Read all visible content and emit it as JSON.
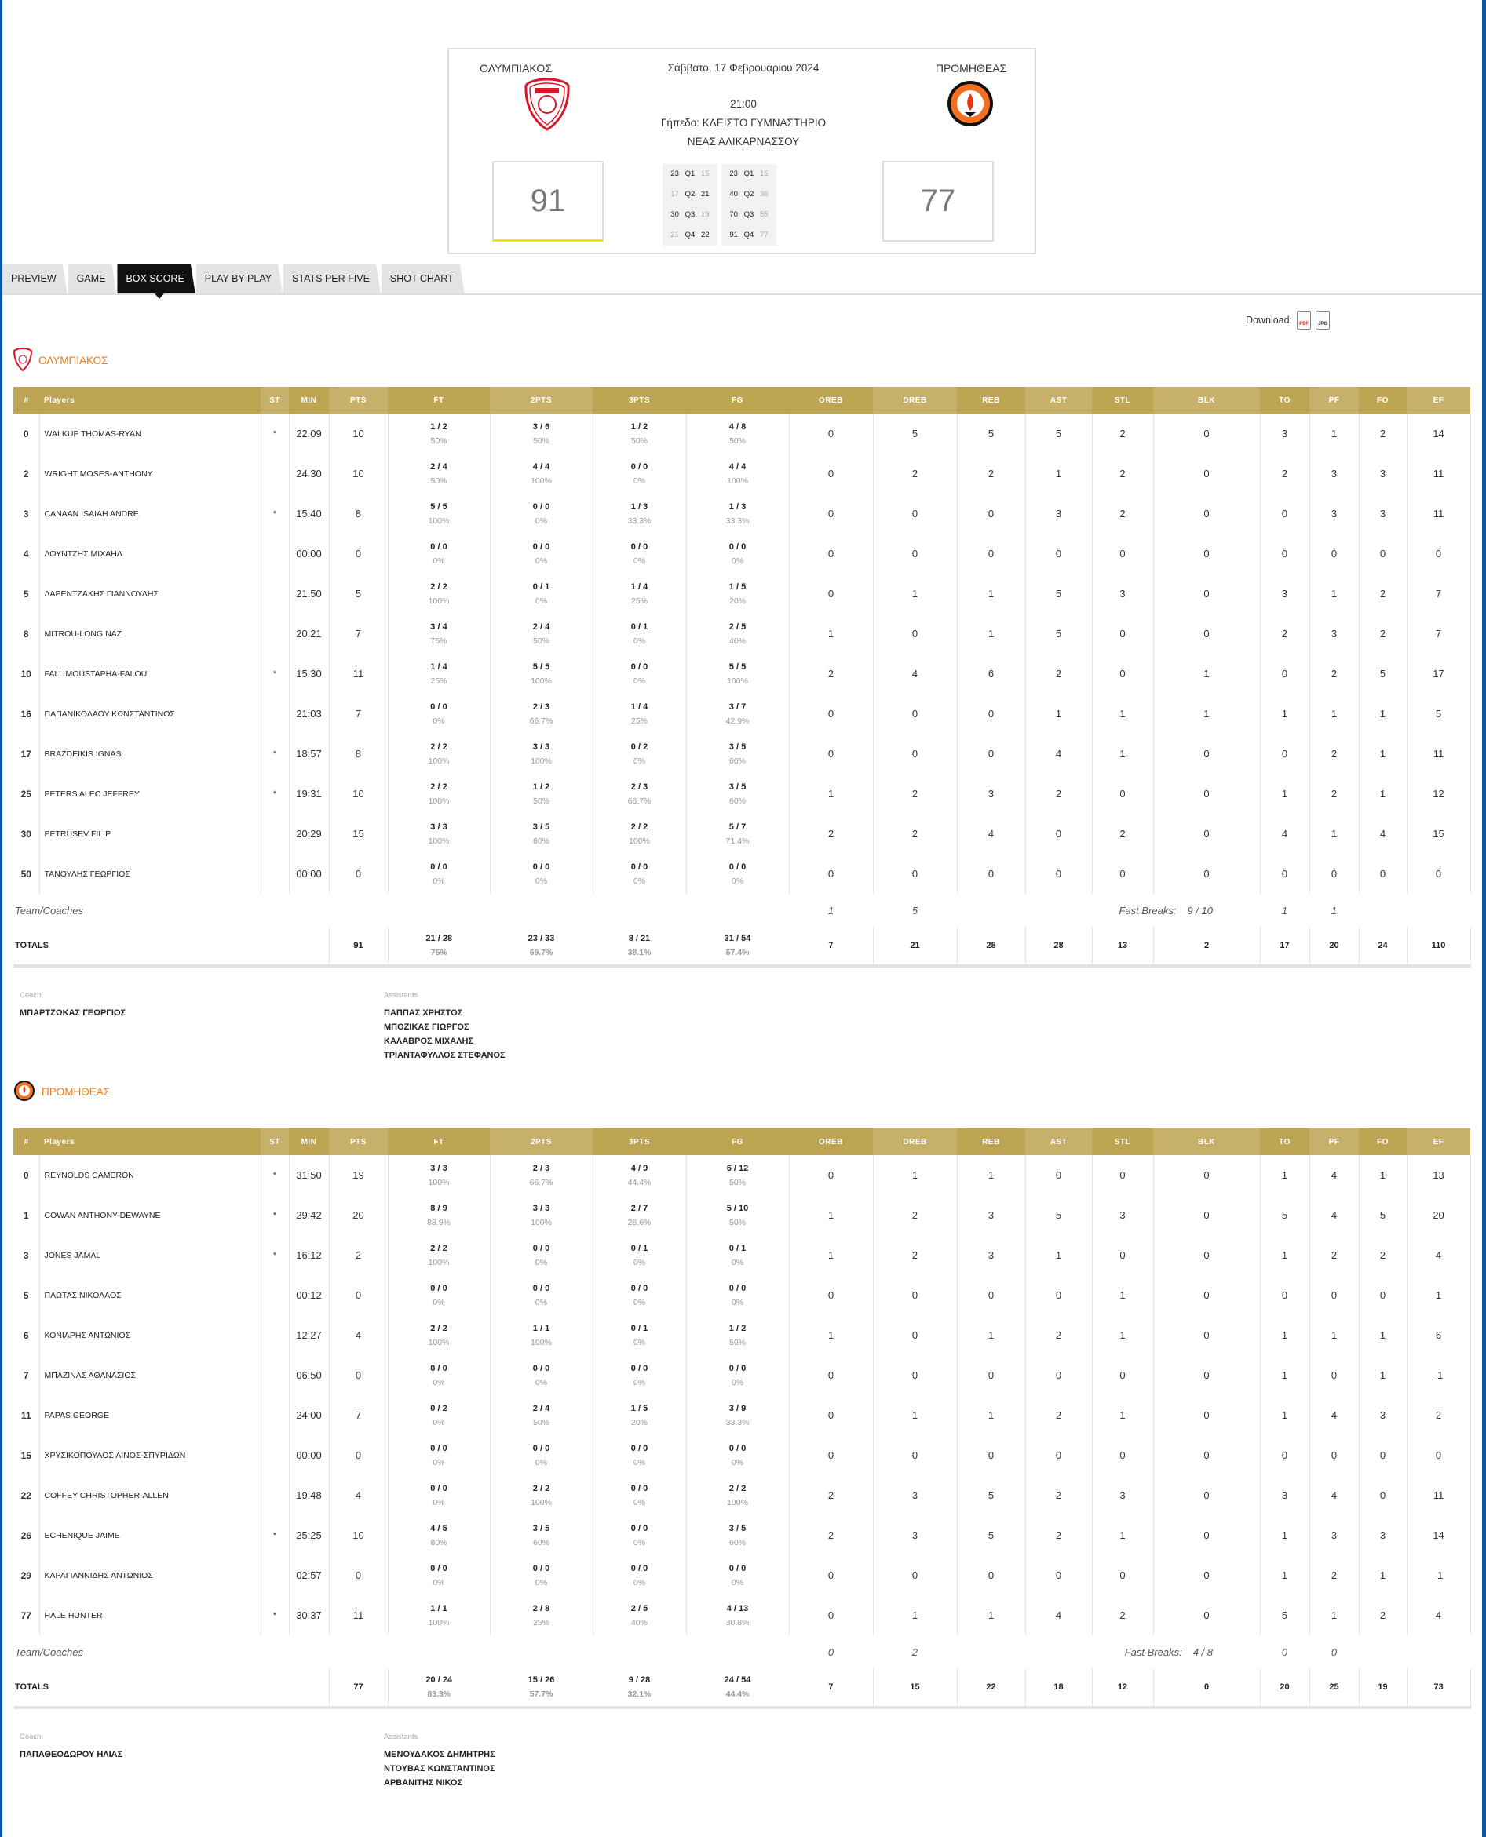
{
  "header": {
    "home_name": "ΟΛΥΜΠΙΑΚΟΣ",
    "away_name": "ΠΡΟΜΗΘΕΑΣ",
    "date": "Σάββατο, 17 Φεβρουαρίου 2024",
    "time": "21:00",
    "venue_line1": "Γήπεδο: ΚΛΕΙΣΤΟ ΓΥΜΝΑΣΤΗΡΙΟ",
    "venue_line2": "ΝΕΑΣ ΑΛΙΚΑΡΝΑΣΣΟΥ",
    "home_score": "91",
    "away_score": "77",
    "home_accent": "#f0e800",
    "quarters": [
      [
        "23",
        "Q1",
        "15"
      ],
      [
        "17",
        "Q2",
        "21"
      ],
      [
        "30",
        "Q3",
        "19"
      ],
      [
        "21",
        "Q4",
        "22"
      ]
    ],
    "cumulative": [
      [
        "23",
        "Q1",
        "15"
      ],
      [
        "40",
        "Q2",
        "36"
      ],
      [
        "70",
        "Q3",
        "55"
      ],
      [
        "91",
        "Q4",
        "77"
      ]
    ]
  },
  "tabs": [
    {
      "label": "PREVIEW"
    },
    {
      "label": "GAME"
    },
    {
      "label": "BOX SCORE",
      "active": true
    },
    {
      "label": "PLAY BY PLAY"
    },
    {
      "label": "STATS PER FIVE"
    },
    {
      "label": "SHOT CHART"
    }
  ],
  "download": {
    "label": "Download:",
    "pdf_icon": "PDF",
    "jpeg_icon": "JPEG"
  },
  "columns": [
    "#",
    "Players",
    "ST",
    "MIN",
    "PTS",
    "FT",
    "2PTS",
    "3PTS",
    "FG",
    "OREB",
    "DREB",
    "REB",
    "AST",
    "STL",
    "BLK",
    "TO",
    "PF",
    "FO",
    "EF"
  ],
  "colors": {
    "header_dark": "#bda554",
    "header_light": "#c6b06a",
    "team_title": "#f07a13",
    "active_tab": "#111111"
  },
  "teams": [
    {
      "name": "ΟΛΥΜΠΙΑΚΟΣ",
      "players": [
        [
          "0",
          "WALKUP THOMAS-RYAN",
          "*",
          "22:09",
          "10",
          "1 / 2",
          "50%",
          "3 / 6",
          "50%",
          "1 / 2",
          "50%",
          "4 / 8",
          "50%",
          "0",
          "5",
          "5",
          "5",
          "2",
          "0",
          "3",
          "1",
          "2",
          "14"
        ],
        [
          "2",
          "WRIGHT MOSES-ANTHONY",
          "",
          "24:30",
          "10",
          "2 / 4",
          "50%",
          "4 / 4",
          "100%",
          "0 / 0",
          "0%",
          "4 / 4",
          "100%",
          "0",
          "2",
          "2",
          "1",
          "2",
          "0",
          "2",
          "3",
          "3",
          "11"
        ],
        [
          "3",
          "CANAAN ISAIAH ANDRE",
          "*",
          "15:40",
          "8",
          "5 / 5",
          "100%",
          "0 / 0",
          "0%",
          "1 / 3",
          "33.3%",
          "1 / 3",
          "33.3%",
          "0",
          "0",
          "0",
          "3",
          "2",
          "0",
          "0",
          "3",
          "3",
          "11"
        ],
        [
          "4",
          "ΛΟΥΝΤΖΗΣ ΜΙΧΑΗΛ",
          "",
          "00:00",
          "0",
          "0 / 0",
          "0%",
          "0 / 0",
          "0%",
          "0 / 0",
          "0%",
          "0 / 0",
          "0%",
          "0",
          "0",
          "0",
          "0",
          "0",
          "0",
          "0",
          "0",
          "0",
          "0"
        ],
        [
          "5",
          "ΛΑΡΕΝΤΖΑΚΗΣ ΓΙΑΝΝΟΥΛΗΣ",
          "",
          "21:50",
          "5",
          "2 / 2",
          "100%",
          "0 / 1",
          "0%",
          "1 / 4",
          "25%",
          "1 / 5",
          "20%",
          "0",
          "1",
          "1",
          "5",
          "3",
          "0",
          "3",
          "1",
          "2",
          "7"
        ],
        [
          "8",
          "MITROU-LONG NAZ",
          "",
          "20:21",
          "7",
          "3 / 4",
          "75%",
          "2 / 4",
          "50%",
          "0 / 1",
          "0%",
          "2 / 5",
          "40%",
          "1",
          "0",
          "1",
          "5",
          "0",
          "0",
          "2",
          "3",
          "2",
          "7"
        ],
        [
          "10",
          "FALL MOUSTAPHA-FALOU",
          "*",
          "15:30",
          "11",
          "1 / 4",
          "25%",
          "5 / 5",
          "100%",
          "0 / 0",
          "0%",
          "5 / 5",
          "100%",
          "2",
          "4",
          "6",
          "2",
          "0",
          "1",
          "0",
          "2",
          "5",
          "17"
        ],
        [
          "16",
          "ΠΑΠΑΝΙΚΟΛΑΟΥ ΚΩΝΣΤΑΝΤΙΝΟΣ",
          "",
          "21:03",
          "7",
          "0 / 0",
          "0%",
          "2 / 3",
          "66.7%",
          "1 / 4",
          "25%",
          "3 / 7",
          "42.9%",
          "0",
          "0",
          "0",
          "1",
          "1",
          "1",
          "1",
          "1",
          "1",
          "5"
        ],
        [
          "17",
          "BRAZDEIKIS IGNAS",
          "*",
          "18:57",
          "8",
          "2 / 2",
          "100%",
          "3 / 3",
          "100%",
          "0 / 2",
          "0%",
          "3 / 5",
          "60%",
          "0",
          "0",
          "0",
          "4",
          "1",
          "0",
          "0",
          "2",
          "1",
          "11"
        ],
        [
          "25",
          "PETERS ALEC JEFFREY",
          "*",
          "19:31",
          "10",
          "2 / 2",
          "100%",
          "1 / 2",
          "50%",
          "2 / 3",
          "66.7%",
          "3 / 5",
          "60%",
          "1",
          "2",
          "3",
          "2",
          "0",
          "0",
          "1",
          "2",
          "1",
          "12"
        ],
        [
          "30",
          "PETRUSEV FILIP",
          "",
          "20:29",
          "15",
          "3 / 3",
          "100%",
          "3 / 5",
          "60%",
          "2 / 2",
          "100%",
          "5 / 7",
          "71.4%",
          "2",
          "2",
          "4",
          "0",
          "2",
          "0",
          "4",
          "1",
          "4",
          "15"
        ],
        [
          "50",
          "ΤΑΝΟΥΛΗΣ ΓΕΩΡΓΙΟΣ",
          "",
          "00:00",
          "0",
          "0 / 0",
          "0%",
          "0 / 0",
          "0%",
          "0 / 0",
          "0%",
          "0 / 0",
          "0%",
          "0",
          "0",
          "0",
          "0",
          "0",
          "0",
          "0",
          "0",
          "0",
          "0"
        ]
      ],
      "team_row": {
        "label": "Team/Coaches",
        "oreb": "1",
        "dreb": "5",
        "fast_breaks_label": "Fast Breaks:",
        "fast_breaks": "9 / 10",
        "to": "1",
        "pf": "1"
      },
      "totals": [
        "TOTALS",
        "91",
        "21 / 28",
        "75%",
        "23 / 33",
        "69.7%",
        "8 / 21",
        "38.1%",
        "31 / 54",
        "57.4%",
        "7",
        "21",
        "28",
        "28",
        "13",
        "2",
        "17",
        "20",
        "24",
        "110"
      ],
      "coach_label": "Coach",
      "coach": "ΜΠΑΡΤΖΩΚΑΣ ΓΕΩΡΓΙΟΣ",
      "assistants_label": "Assistants",
      "assistants": [
        "ΠΑΠΠΑΣ ΧΡΗΣΤΟΣ",
        "ΜΠΟΖΙΚΑΣ ΓΙΩΡΓΟΣ",
        "ΚΑΛΑΒΡΟΣ ΜΙΧΑΛΗΣ",
        "ΤΡΙΑΝΤΑΦΥΛΛΟΣ ΣΤΕΦΑΝΟΣ"
      ]
    },
    {
      "name": "ΠΡΟΜΗΘΕΑΣ",
      "players": [
        [
          "0",
          "REYNOLDS CAMERON",
          "*",
          "31:50",
          "19",
          "3 / 3",
          "100%",
          "2 / 3",
          "66.7%",
          "4 / 9",
          "44.4%",
          "6 / 12",
          "50%",
          "0",
          "1",
          "1",
          "0",
          "0",
          "0",
          "1",
          "4",
          "1",
          "13"
        ],
        [
          "1",
          "COWAN ANTHONY-DEWAYNE",
          "*",
          "29:42",
          "20",
          "8 / 9",
          "88.9%",
          "3 / 3",
          "100%",
          "2 / 7",
          "28.6%",
          "5 / 10",
          "50%",
          "1",
          "2",
          "3",
          "5",
          "3",
          "0",
          "5",
          "4",
          "5",
          "20"
        ],
        [
          "3",
          "JONES JAMAL",
          "*",
          "16:12",
          "2",
          "2 / 2",
          "100%",
          "0 / 0",
          "0%",
          "0 / 1",
          "0%",
          "0 / 1",
          "0%",
          "1",
          "2",
          "3",
          "1",
          "0",
          "0",
          "1",
          "2",
          "2",
          "4"
        ],
        [
          "5",
          "ΠΛΩΤΑΣ ΝΙΚΟΛΑΟΣ",
          "",
          "00:12",
          "0",
          "0 / 0",
          "0%",
          "0 / 0",
          "0%",
          "0 / 0",
          "0%",
          "0 / 0",
          "0%",
          "0",
          "0",
          "0",
          "0",
          "1",
          "0",
          "0",
          "0",
          "0",
          "1"
        ],
        [
          "6",
          "ΚΟΝΙΑΡΗΣ ΑΝΤΩΝΙΟΣ",
          "",
          "12:27",
          "4",
          "2 / 2",
          "100%",
          "1 / 1",
          "100%",
          "0 / 1",
          "0%",
          "1 / 2",
          "50%",
          "1",
          "0",
          "1",
          "2",
          "1",
          "0",
          "1",
          "1",
          "1",
          "6"
        ],
        [
          "7",
          "ΜΠΑΖΙΝΑΣ ΑΘΑΝΑΣΙΟΣ",
          "",
          "06:50",
          "0",
          "0 / 0",
          "0%",
          "0 / 0",
          "0%",
          "0 / 0",
          "0%",
          "0 / 0",
          "0%",
          "0",
          "0",
          "0",
          "0",
          "0",
          "0",
          "1",
          "0",
          "1",
          "-1"
        ],
        [
          "11",
          "PAPAS GEORGE",
          "",
          "24:00",
          "7",
          "0 / 2",
          "0%",
          "2 / 4",
          "50%",
          "1 / 5",
          "20%",
          "3 / 9",
          "33.3%",
          "0",
          "1",
          "1",
          "2",
          "1",
          "0",
          "1",
          "4",
          "3",
          "2"
        ],
        [
          "15",
          "ΧΡΥΣΙΚΟΠΟΥΛΟΣ ΛΙΝΟΣ-ΣΠΥΡΙΔΩΝ",
          "",
          "00:00",
          "0",
          "0 / 0",
          "0%",
          "0 / 0",
          "0%",
          "0 / 0",
          "0%",
          "0 / 0",
          "0%",
          "0",
          "0",
          "0",
          "0",
          "0",
          "0",
          "0",
          "0",
          "0",
          "0"
        ],
        [
          "22",
          "COFFEY CHRISTOPHER-ALLEN",
          "",
          "19:48",
          "4",
          "0 / 0",
          "0%",
          "2 / 2",
          "100%",
          "0 / 0",
          "0%",
          "2 / 2",
          "100%",
          "2",
          "3",
          "5",
          "2",
          "3",
          "0",
          "3",
          "4",
          "0",
          "11"
        ],
        [
          "26",
          "ECHENIQUE JAIME",
          "*",
          "25:25",
          "10",
          "4 / 5",
          "80%",
          "3 / 5",
          "60%",
          "0 / 0",
          "0%",
          "3 / 5",
          "60%",
          "2",
          "3",
          "5",
          "2",
          "1",
          "0",
          "1",
          "3",
          "3",
          "14"
        ],
        [
          "29",
          "ΚΑΡΑΓΙΑΝΝΙΔΗΣ ΑΝΤΩΝΙΟΣ",
          "",
          "02:57",
          "0",
          "0 / 0",
          "0%",
          "0 / 0",
          "0%",
          "0 / 0",
          "0%",
          "0 / 0",
          "0%",
          "0",
          "0",
          "0",
          "0",
          "0",
          "0",
          "1",
          "2",
          "1",
          "-1"
        ],
        [
          "77",
          "HALE HUNTER",
          "*",
          "30:37",
          "11",
          "1 / 1",
          "100%",
          "2 / 8",
          "25%",
          "2 / 5",
          "40%",
          "4 / 13",
          "30.8%",
          "0",
          "1",
          "1",
          "4",
          "2",
          "0",
          "5",
          "1",
          "2",
          "4"
        ]
      ],
      "team_row": {
        "label": "Team/Coaches",
        "oreb": "0",
        "dreb": "2",
        "fast_breaks_label": "Fast Breaks:",
        "fast_breaks": "4 / 8",
        "to": "0",
        "pf": "0"
      },
      "totals": [
        "TOTALS",
        "77",
        "20 / 24",
        "83.3%",
        "15 / 26",
        "57.7%",
        "9 / 28",
        "32.1%",
        "24 / 54",
        "44.4%",
        "7",
        "15",
        "22",
        "18",
        "12",
        "0",
        "20",
        "25",
        "19",
        "73"
      ],
      "coach_label": "Coach",
      "coach": "ΠΑΠΑΘΕΟΔΩΡΟΥ ΗΛΙΑΣ",
      "assistants_label": "Assistants",
      "assistants": [
        "ΜΕΝΟΥΔΑΚΟΣ ΔΗΜΗΤΡΗΣ",
        "ΝΤΟΥΒΑΣ ΚΩΝΣΤΑΝΤΙΝΟΣ",
        "ΑΡΒΑΝΙΤΗΣ ΝΙΚΟΣ"
      ]
    }
  ]
}
